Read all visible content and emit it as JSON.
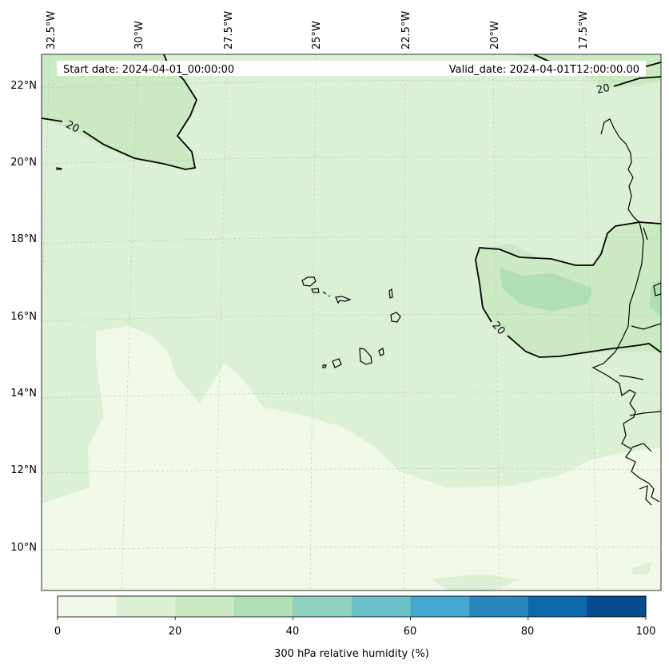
{
  "header": {
    "start_date": "Start date: 2024-04-01_00:00:00",
    "valid_date": "Valid_date: 2024-04-01T12:00:00.00"
  },
  "longitude_labels": [
    "32.5°W",
    "30°W",
    "27.5°W",
    "25°W",
    "22.5°W",
    "20°W",
    "17.5°W"
  ],
  "latitude_labels": [
    "22°N",
    "20°N",
    "18°N",
    "16°N",
    "14°N",
    "12°N",
    "10°N"
  ],
  "contour": {
    "label": "20"
  },
  "colorbar": {
    "label": "300 hPa relative humidity (%)",
    "ticks": [
      "0",
      "20",
      "40",
      "60",
      "80",
      "100"
    ],
    "colors": [
      "#f0f9e8",
      "#dcf0d6",
      "#cbe9c2",
      "#b0dfb6",
      "#8fd2bf",
      "#6cc1c9",
      "#45a8d1",
      "#2a88be",
      "#0f68ab",
      "#084c8d"
    ]
  }
}
